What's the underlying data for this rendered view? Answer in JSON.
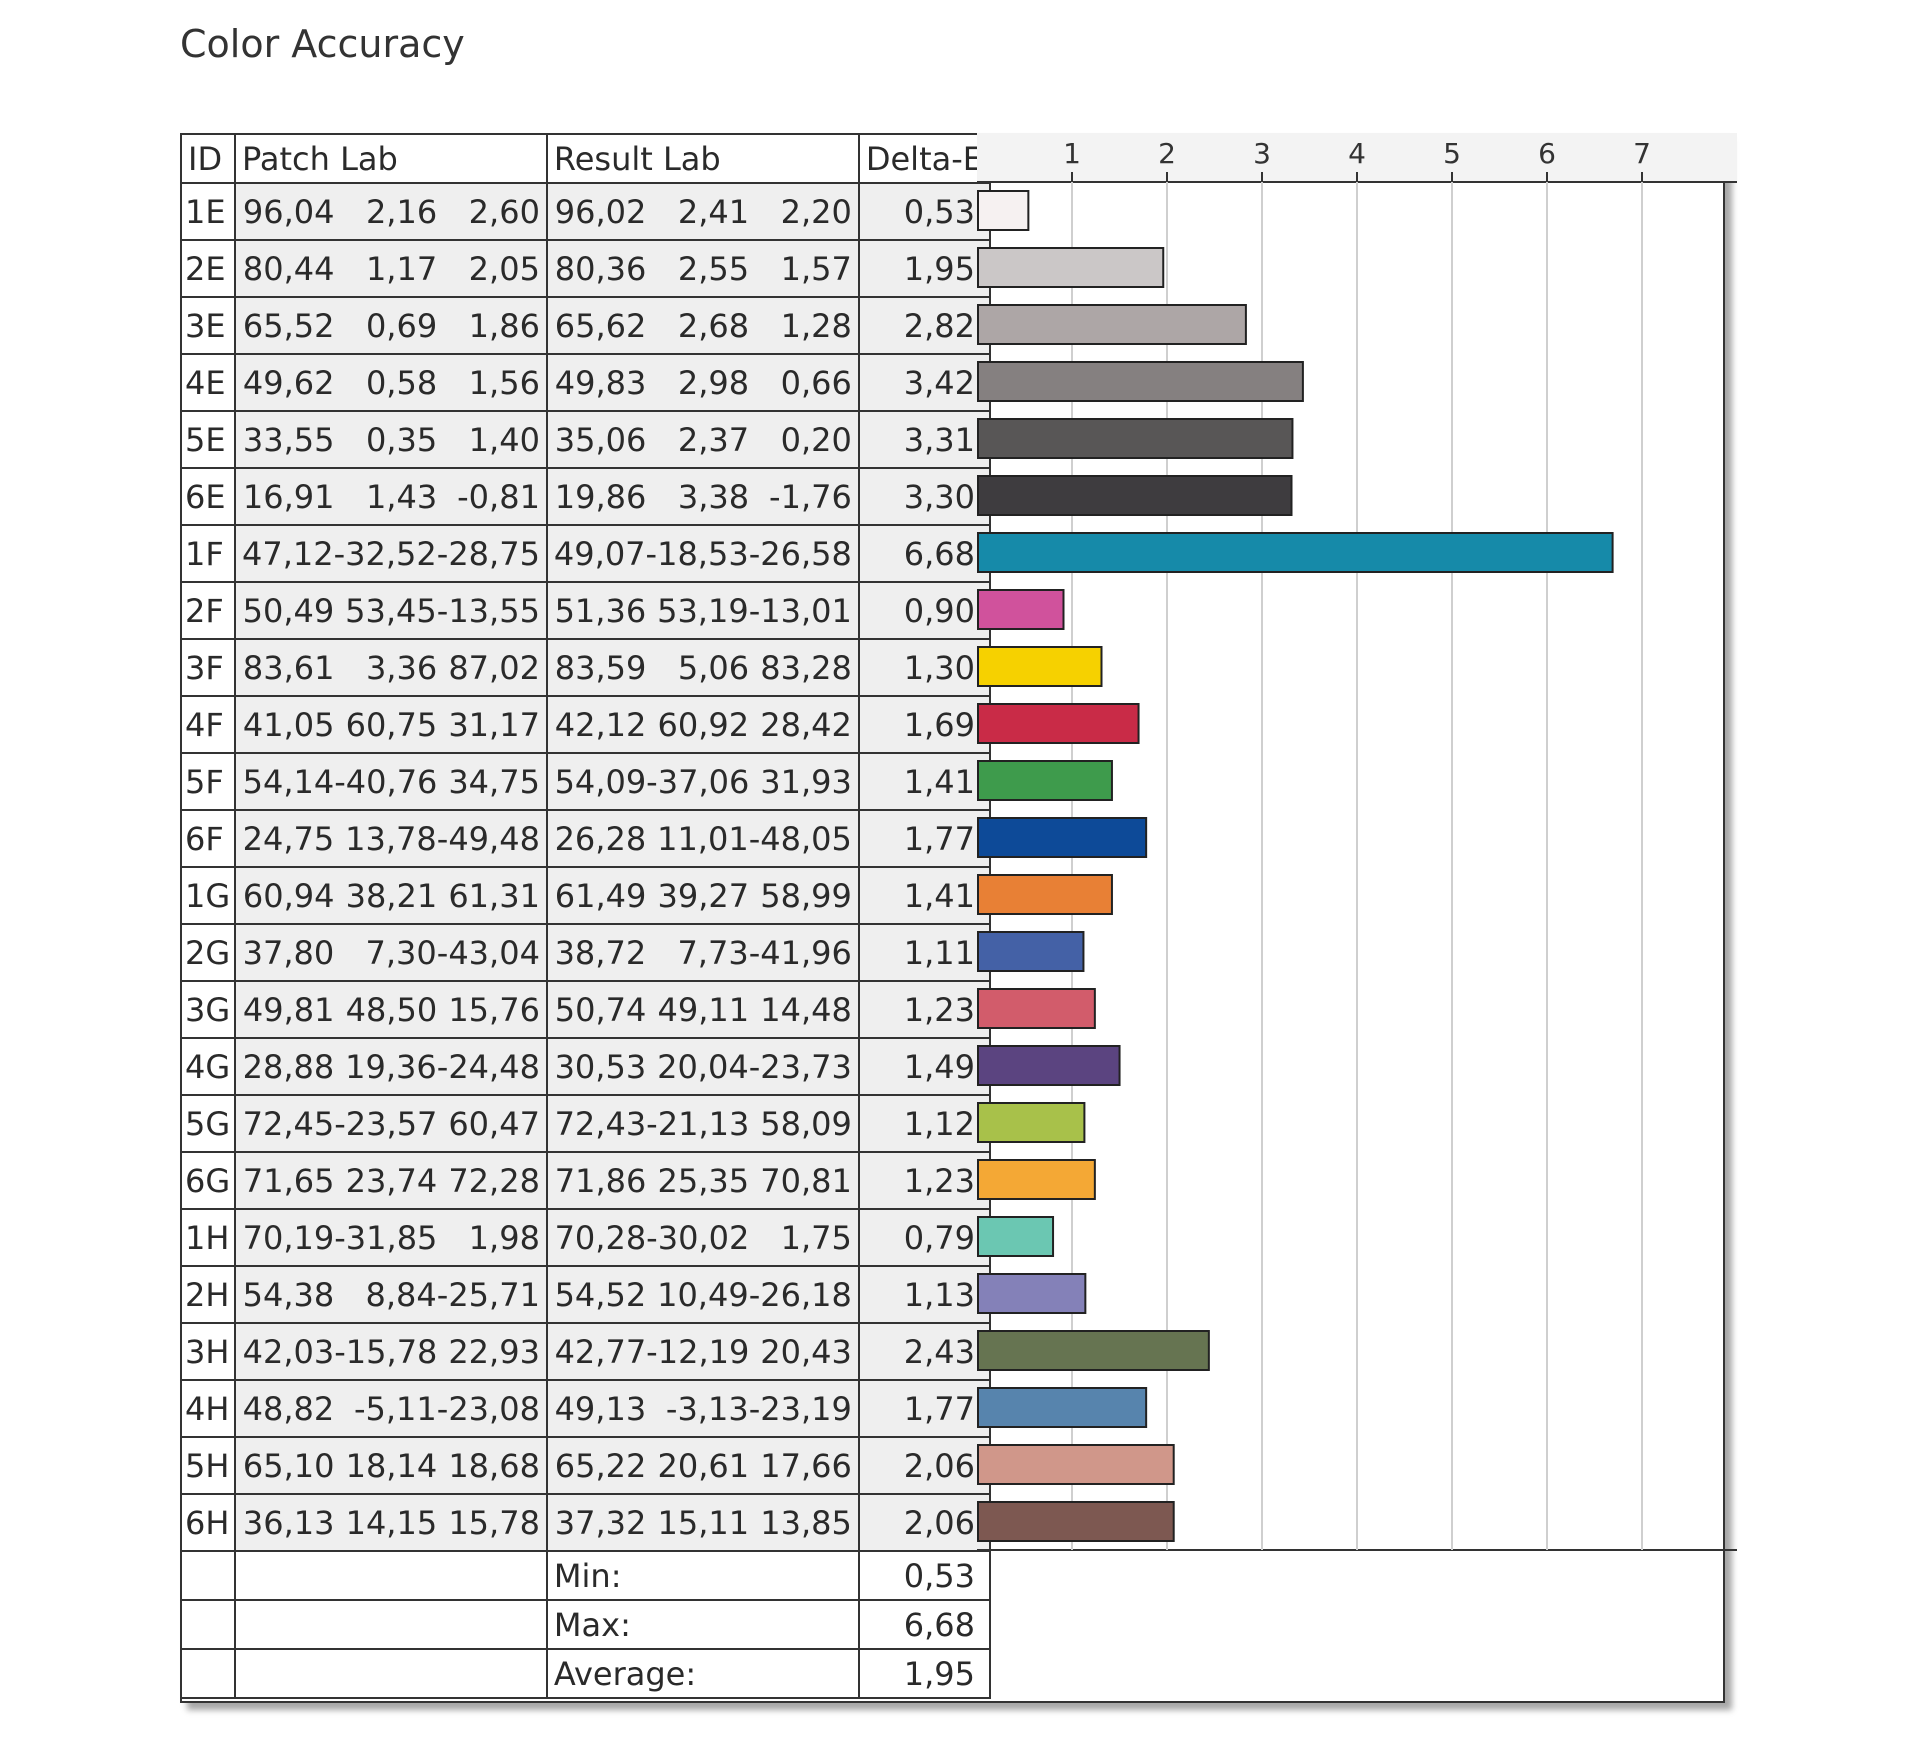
{
  "title": "Color Accuracy",
  "headers": {
    "id": "ID",
    "patch": "Patch Lab",
    "result": "Result Lab",
    "delta": "Delta-E"
  },
  "rows": [
    {
      "id": "1E",
      "patch": [
        "96,04",
        "2,16",
        "2,60"
      ],
      "result": [
        "96,02",
        "2,41",
        "2,20"
      ],
      "delta": "0,53"
    },
    {
      "id": "2E",
      "patch": [
        "80,44",
        "1,17",
        "2,05"
      ],
      "result": [
        "80,36",
        "2,55",
        "1,57"
      ],
      "delta": "1,95"
    },
    {
      "id": "3E",
      "patch": [
        "65,52",
        "0,69",
        "1,86"
      ],
      "result": [
        "65,62",
        "2,68",
        "1,28"
      ],
      "delta": "2,82"
    },
    {
      "id": "4E",
      "patch": [
        "49,62",
        "0,58",
        "1,56"
      ],
      "result": [
        "49,83",
        "2,98",
        "0,66"
      ],
      "delta": "3,42"
    },
    {
      "id": "5E",
      "patch": [
        "33,55",
        "0,35",
        "1,40"
      ],
      "result": [
        "35,06",
        "2,37",
        "0,20"
      ],
      "delta": "3,31"
    },
    {
      "id": "6E",
      "patch": [
        "16,91",
        "1,43",
        "-0,81"
      ],
      "result": [
        "19,86",
        "3,38",
        "-1,76"
      ],
      "delta": "3,30"
    },
    {
      "id": "1F",
      "patch": [
        "47,12",
        "-32,52",
        "-28,75"
      ],
      "result": [
        "49,07",
        "-18,53",
        "-26,58"
      ],
      "delta": "6,68"
    },
    {
      "id": "2F",
      "patch": [
        "50,49",
        "53,45",
        "-13,55"
      ],
      "result": [
        "51,36",
        "53,19",
        "-13,01"
      ],
      "delta": "0,90"
    },
    {
      "id": "3F",
      "patch": [
        "83,61",
        "3,36",
        "87,02"
      ],
      "result": [
        "83,59",
        "5,06",
        "83,28"
      ],
      "delta": "1,30"
    },
    {
      "id": "4F",
      "patch": [
        "41,05",
        "60,75",
        "31,17"
      ],
      "result": [
        "42,12",
        "60,92",
        "28,42"
      ],
      "delta": "1,69"
    },
    {
      "id": "5F",
      "patch": [
        "54,14",
        "-40,76",
        "34,75"
      ],
      "result": [
        "54,09",
        "-37,06",
        "31,93"
      ],
      "delta": "1,41"
    },
    {
      "id": "6F",
      "patch": [
        "24,75",
        "13,78",
        "-49,48"
      ],
      "result": [
        "26,28",
        "11,01",
        "-48,05"
      ],
      "delta": "1,77"
    },
    {
      "id": "1G",
      "patch": [
        "60,94",
        "38,21",
        "61,31"
      ],
      "result": [
        "61,49",
        "39,27",
        "58,99"
      ],
      "delta": "1,41"
    },
    {
      "id": "2G",
      "patch": [
        "37,80",
        "7,30",
        "-43,04"
      ],
      "result": [
        "38,72",
        "7,73",
        "-41,96"
      ],
      "delta": "1,11"
    },
    {
      "id": "3G",
      "patch": [
        "49,81",
        "48,50",
        "15,76"
      ],
      "result": [
        "50,74",
        "49,11",
        "14,48"
      ],
      "delta": "1,23"
    },
    {
      "id": "4G",
      "patch": [
        "28,88",
        "19,36",
        "-24,48"
      ],
      "result": [
        "30,53",
        "20,04",
        "-23,73"
      ],
      "delta": "1,49"
    },
    {
      "id": "5G",
      "patch": [
        "72,45",
        "-23,57",
        "60,47"
      ],
      "result": [
        "72,43",
        "-21,13",
        "58,09"
      ],
      "delta": "1,12"
    },
    {
      "id": "6G",
      "patch": [
        "71,65",
        "23,74",
        "72,28"
      ],
      "result": [
        "71,86",
        "25,35",
        "70,81"
      ],
      "delta": "1,23"
    },
    {
      "id": "1H",
      "patch": [
        "70,19",
        "-31,85",
        "1,98"
      ],
      "result": [
        "70,28",
        "-30,02",
        "1,75"
      ],
      "delta": "0,79"
    },
    {
      "id": "2H",
      "patch": [
        "54,38",
        "8,84",
        "-25,71"
      ],
      "result": [
        "54,52",
        "10,49",
        "-26,18"
      ],
      "delta": "1,13"
    },
    {
      "id": "3H",
      "patch": [
        "42,03",
        "-15,78",
        "22,93"
      ],
      "result": [
        "42,77",
        "-12,19",
        "20,43"
      ],
      "delta": "2,43"
    },
    {
      "id": "4H",
      "patch": [
        "48,82",
        "-5,11",
        "-23,08"
      ],
      "result": [
        "49,13",
        "-3,13",
        "-23,19"
      ],
      "delta": "1,77"
    },
    {
      "id": "5H",
      "patch": [
        "65,10",
        "18,14",
        "18,68"
      ],
      "result": [
        "65,22",
        "20,61",
        "17,66"
      ],
      "delta": "2,06"
    },
    {
      "id": "6H",
      "patch": [
        "36,13",
        "14,15",
        "15,78"
      ],
      "result": [
        "37,32",
        "15,11",
        "13,85"
      ],
      "delta": "2,06"
    }
  ],
  "summary": [
    {
      "label": "Min:",
      "value": "0,53"
    },
    {
      "label": "Max:",
      "value": "6,68"
    },
    {
      "label": "Average:",
      "value": "1,95"
    }
  ],
  "chart_data": {
    "type": "bar",
    "orientation": "horizontal",
    "title": "",
    "xlabel": "",
    "ylabel": "",
    "xlim": [
      0,
      8
    ],
    "ticks": [
      1,
      2,
      3,
      4,
      5,
      6,
      7
    ],
    "grid": true,
    "legend": "none",
    "categories": [
      "1E",
      "2E",
      "3E",
      "4E",
      "5E",
      "6E",
      "1F",
      "2F",
      "3F",
      "4F",
      "5F",
      "6F",
      "1G",
      "2G",
      "3G",
      "4G",
      "5G",
      "6G",
      "1H",
      "2H",
      "3H",
      "4H",
      "5H",
      "6H"
    ],
    "values": [
      0.53,
      1.95,
      2.82,
      3.42,
      3.31,
      3.3,
      6.68,
      0.9,
      1.3,
      1.69,
      1.41,
      1.77,
      1.41,
      1.11,
      1.23,
      1.49,
      1.12,
      1.23,
      0.79,
      1.13,
      2.43,
      1.77,
      2.06,
      2.06
    ],
    "colors": [
      "#f6f1f1",
      "#cbc7c7",
      "#ada6a6",
      "#858080",
      "#585656",
      "#3e3c3f",
      "#168aa9",
      "#d0529c",
      "#f6d100",
      "#c92b47",
      "#3e9b4c",
      "#0d4a98",
      "#e88035",
      "#4461a6",
      "#d25c6b",
      "#5b4480",
      "#a8c14a",
      "#f4a835",
      "#6bc7b2",
      "#8481b8",
      "#667451",
      "#5784ad",
      "#d0978a",
      "#7d5851"
    ]
  }
}
